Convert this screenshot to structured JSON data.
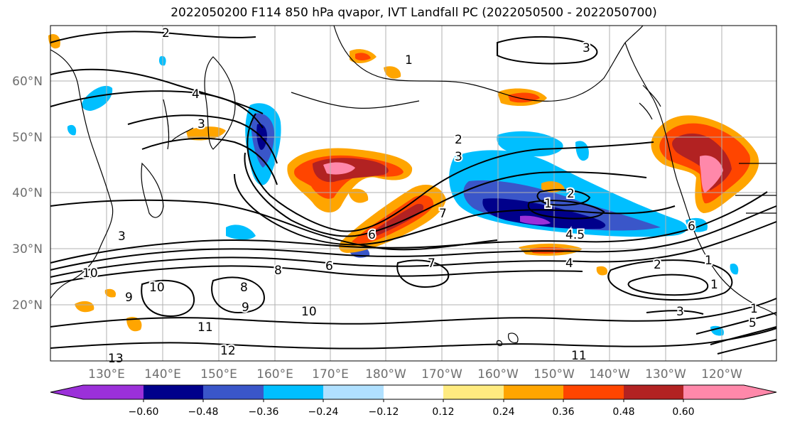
{
  "title": "2022050200 F114 850 hPa qvapor, IVT Landfall PC (2022050500 - 2022050700)",
  "lon_labels": [
    "130°E",
    "140°E",
    "150°E",
    "160°E",
    "170°E",
    "180°W",
    "170°W",
    "160°W",
    "150°W",
    "140°W",
    "130°W",
    "120°W"
  ],
  "lat_labels": [
    "60°N",
    "50°N",
    "40°N",
    "30°N",
    "20°N"
  ],
  "contour_labels": [
    "2",
    "3",
    "1",
    "4",
    "3",
    "2",
    "3",
    "2",
    "1",
    "4.5",
    "6",
    "7",
    "8",
    "6",
    "7",
    "10",
    "9",
    "10",
    "8",
    "9",
    "10",
    "11",
    "12",
    "13",
    "11",
    "2",
    "1",
    "4",
    "3",
    "1",
    "1",
    "6",
    "5",
    "3"
  ],
  "colorbar": {
    "ticks": [
      "−0.60",
      "−0.48",
      "−0.36",
      "−0.24",
      "−0.12",
      "0.12",
      "0.24",
      "0.36",
      "0.48",
      "0.60"
    ],
    "colors": [
      "#9b30d9",
      "#00008b",
      "#3a56c9",
      "#00bfff",
      "#b0e0ff",
      "#ffffff",
      "#ffeb80",
      "#ffa500",
      "#ff4500",
      "#b22222",
      "#ff88aa"
    ],
    "low_color": "#9b30d9",
    "high_color": "#ff88aa"
  },
  "colors": {
    "grid": "#b0b0b0",
    "contour": "#000000",
    "coast": "#000000"
  }
}
